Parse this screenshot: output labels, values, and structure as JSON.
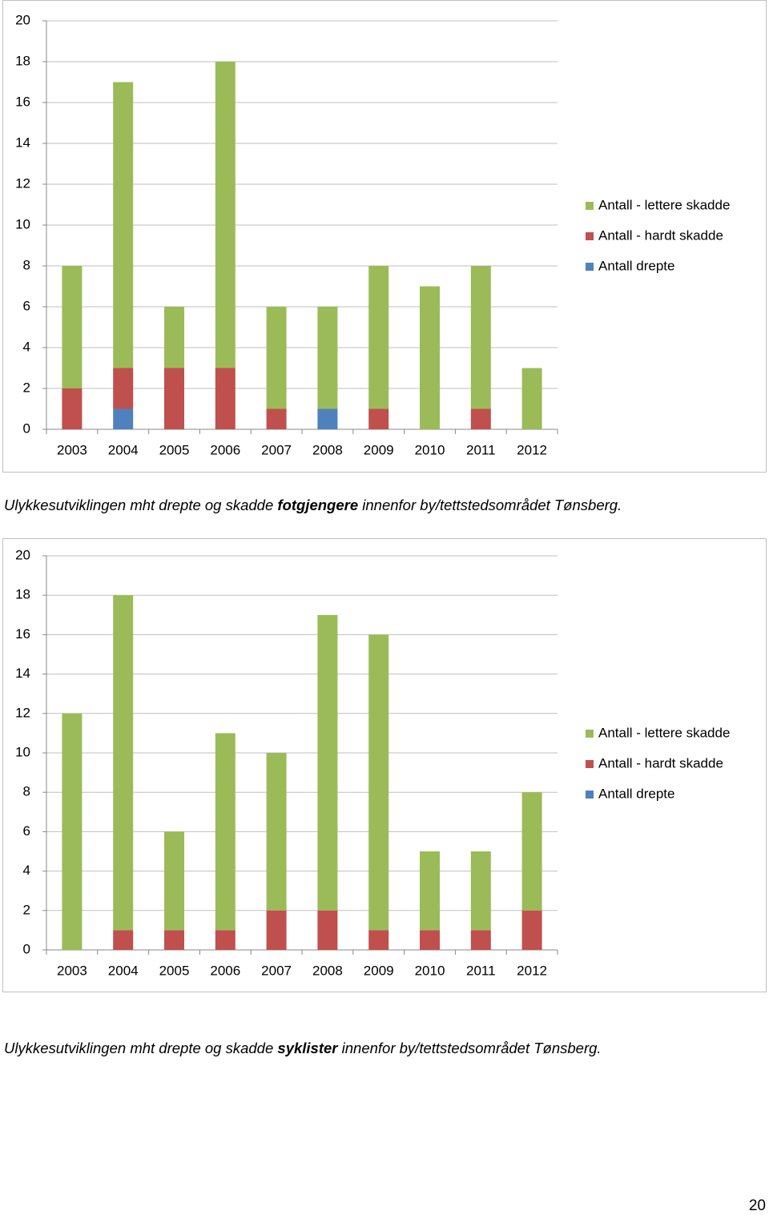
{
  "chart_data": [
    {
      "type": "stacked-bar",
      "categories": [
        "2003",
        "2004",
        "2005",
        "2006",
        "2007",
        "2008",
        "2009",
        "2010",
        "2011",
        "2012"
      ],
      "series": [
        {
          "name": "Antall drepte",
          "color": "#4f81bd",
          "values": [
            0,
            1,
            0,
            0,
            0,
            1,
            0,
            0,
            0,
            0
          ]
        },
        {
          "name": "Antall - hardt skadde",
          "color": "#c0504d",
          "values": [
            2,
            2,
            3,
            3,
            1,
            0,
            1,
            0,
            1,
            0
          ]
        },
        {
          "name": "Antall - lettere skadde",
          "color": "#9bbb59",
          "values": [
            6,
            14,
            3,
            15,
            5,
            5,
            7,
            7,
            7,
            3
          ]
        }
      ],
      "ylim": [
        0,
        20
      ],
      "yticks": [
        0,
        2,
        4,
        6,
        8,
        10,
        12,
        14,
        16,
        18,
        20
      ],
      "grid": true,
      "legend": "right"
    },
    {
      "type": "stacked-bar",
      "categories": [
        "2003",
        "2004",
        "2005",
        "2006",
        "2007",
        "2008",
        "2009",
        "2010",
        "2011",
        "2012"
      ],
      "series": [
        {
          "name": "Antall drepte",
          "color": "#4f81bd",
          "values": [
            0,
            0,
            0,
            0,
            0,
            0,
            0,
            0,
            0,
            0
          ]
        },
        {
          "name": "Antall - hardt skadde",
          "color": "#c0504d",
          "values": [
            0,
            1,
            1,
            1,
            2,
            2,
            1,
            1,
            1,
            2
          ]
        },
        {
          "name": "Antall - lettere skadde",
          "color": "#9bbb59",
          "values": [
            12,
            17,
            5,
            10,
            8,
            15,
            15,
            4,
            4,
            6
          ]
        }
      ],
      "ylim": [
        0,
        20
      ],
      "yticks": [
        0,
        2,
        4,
        6,
        8,
        10,
        12,
        14,
        16,
        18,
        20
      ],
      "grid": true,
      "legend": "right"
    }
  ],
  "captions": [
    [
      "Ulykkesutviklingen mht drepte og skadde ",
      "fotgjengere",
      " innenfor by/tettstedsområdet Tønsberg."
    ],
    [
      "Ulykkesutviklingen mht drepte og skadde ",
      "syklister",
      " innenfor by/tettstedsområdet Tønsberg."
    ]
  ],
  "page_number": "20"
}
